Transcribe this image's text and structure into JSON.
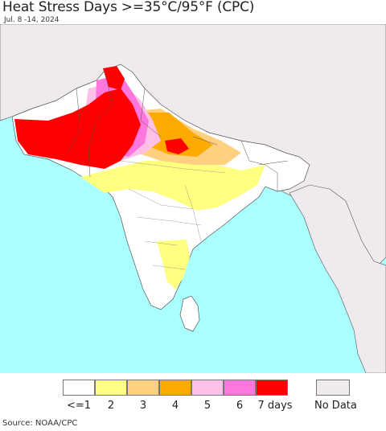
{
  "title": "Heat Stress Days >=35°C/95°F (CPC)",
  "subtitle": "Jul. 8 -14, 2024",
  "source": "Source: NOAA/CPC",
  "colors": {
    "ocean": "#aaffff",
    "land_nodata": "#eeeaee",
    "land_zero": "#ffffff",
    "borders": "#555555"
  },
  "legend": {
    "items": [
      {
        "label": "<=1",
        "color": "#ffffff"
      },
      {
        "label": "2",
        "color": "#ffff80"
      },
      {
        "label": "3",
        "color": "#ffd080"
      },
      {
        "label": "4",
        "color": "#ffaa00"
      },
      {
        "label": "5",
        "color": "#ffc0e8"
      },
      {
        "label": "6",
        "color": "#ff77dd"
      },
      {
        "label": "7 days",
        "color": "#ff0000"
      }
    ],
    "no_data": {
      "label": "No Data",
      "color": "#eeeaee"
    }
  }
}
